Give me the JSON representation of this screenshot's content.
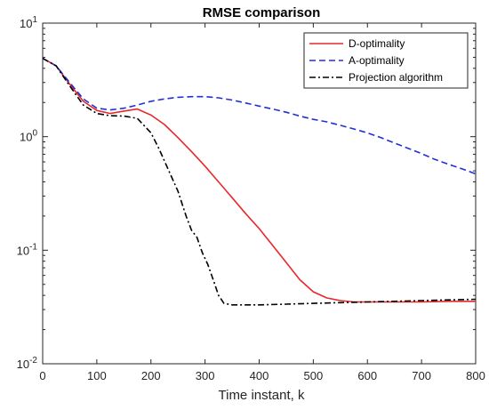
{
  "chart_data": {
    "type": "line",
    "title": "RMSE comparison",
    "xlabel": "Time instant, k",
    "ylabel": "",
    "xlim": [
      0,
      800
    ],
    "ylim": [
      0.01,
      10
    ],
    "yscale": "log",
    "grid": false,
    "legend": "top-right",
    "x_ticks": [
      "0",
      "100",
      "200",
      "300",
      "400",
      "500",
      "600",
      "700",
      "800"
    ],
    "y_ticks": [
      {
        "base": "10",
        "exp": "-2",
        "value": 0.01
      },
      {
        "base": "10",
        "exp": "-1",
        "value": 0.1
      },
      {
        "base": "10",
        "exp": "0",
        "value": 1
      },
      {
        "base": "10",
        "exp": "1",
        "value": 10
      }
    ],
    "series": [
      {
        "name": "D-optimality",
        "color": "#e8282b",
        "dash": "solid",
        "x": [
          0,
          25,
          50,
          75,
          100,
          125,
          150,
          175,
          200,
          225,
          250,
          275,
          300,
          325,
          350,
          375,
          400,
          425,
          450,
          475,
          500,
          525,
          550,
          575,
          600,
          650,
          700,
          750,
          800
        ],
        "y": [
          4.9,
          4.2,
          2.9,
          2.05,
          1.7,
          1.6,
          1.68,
          1.75,
          1.55,
          1.28,
          0.98,
          0.74,
          0.55,
          0.4,
          0.29,
          0.21,
          0.155,
          0.11,
          0.078,
          0.055,
          0.043,
          0.038,
          0.036,
          0.035,
          0.035,
          0.035,
          0.035,
          0.0355,
          0.0355
        ]
      },
      {
        "name": "A-optimality",
        "color": "#2030d8",
        "dash": "dashed",
        "x": [
          0,
          25,
          50,
          75,
          100,
          125,
          150,
          175,
          200,
          225,
          250,
          275,
          300,
          325,
          350,
          375,
          400,
          425,
          450,
          475,
          500,
          525,
          550,
          575,
          600,
          625,
          650,
          675,
          700,
          725,
          750,
          775,
          800
        ],
        "y": [
          4.9,
          4.2,
          3.0,
          2.15,
          1.78,
          1.72,
          1.78,
          1.9,
          2.05,
          2.15,
          2.22,
          2.25,
          2.25,
          2.2,
          2.1,
          1.98,
          1.86,
          1.75,
          1.64,
          1.52,
          1.42,
          1.35,
          1.26,
          1.17,
          1.08,
          0.98,
          0.88,
          0.79,
          0.71,
          0.63,
          0.57,
          0.52,
          0.47
        ]
      },
      {
        "name": "Projection algorithm",
        "color": "#000000",
        "dash": "dashdot",
        "x": [
          0,
          25,
          50,
          75,
          100,
          125,
          150,
          175,
          200,
          215,
          230,
          250,
          265,
          275,
          285,
          295,
          305,
          315,
          325,
          335,
          350,
          400,
          450,
          500,
          550,
          600,
          650,
          700,
          750,
          800
        ],
        "y": [
          4.9,
          4.2,
          2.8,
          1.9,
          1.6,
          1.53,
          1.52,
          1.45,
          1.08,
          0.78,
          0.54,
          0.33,
          0.2,
          0.15,
          0.13,
          0.095,
          0.075,
          0.055,
          0.04,
          0.034,
          0.033,
          0.033,
          0.0335,
          0.034,
          0.0345,
          0.035,
          0.0355,
          0.036,
          0.0365,
          0.037
        ]
      }
    ]
  }
}
